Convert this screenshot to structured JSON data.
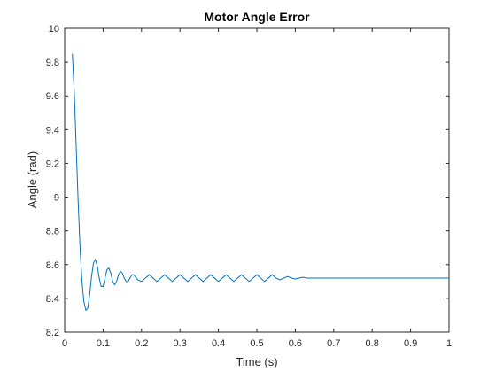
{
  "chart_data": {
    "type": "line",
    "title": "Motor Angle Error",
    "xlabel": "Time (s)",
    "ylabel": "Angle (rad)",
    "xlim": [
      0,
      1
    ],
    "ylim": [
      8.2,
      10
    ],
    "xticks": [
      0,
      0.1,
      0.2,
      0.3,
      0.4,
      0.5,
      0.6,
      0.7,
      0.8,
      0.9,
      1
    ],
    "xtick_labels": [
      "0",
      "0.1",
      "0.2",
      "0.3",
      "0.4",
      "0.5",
      "0.6",
      "0.7",
      "0.8",
      "0.9",
      "1"
    ],
    "yticks": [
      8.2,
      8.4,
      8.6,
      8.8,
      9,
      9.2,
      9.4,
      9.6,
      9.8,
      10
    ],
    "ytick_labels": [
      "8.2",
      "8.4",
      "8.6",
      "8.8",
      "9",
      "9.2",
      "9.4",
      "9.6",
      "9.8",
      "10"
    ],
    "grid": false,
    "line_color": "#0072bd",
    "series": [
      {
        "x": [
          0.02,
          0.025,
          0.03,
          0.035,
          0.04,
          0.045,
          0.05,
          0.055,
          0.06,
          0.065,
          0.07,
          0.075,
          0.08,
          0.085,
          0.09,
          0.095,
          0.1,
          0.105,
          0.11,
          0.115,
          0.12,
          0.125,
          0.13,
          0.135,
          0.14,
          0.145,
          0.15,
          0.155,
          0.16,
          0.165,
          0.17,
          0.175,
          0.18,
          0.19,
          0.2,
          0.21,
          0.22,
          0.23,
          0.24,
          0.25,
          0.26,
          0.27,
          0.28,
          0.29,
          0.3,
          0.31,
          0.32,
          0.33,
          0.34,
          0.35,
          0.36,
          0.37,
          0.38,
          0.39,
          0.4,
          0.41,
          0.42,
          0.43,
          0.44,
          0.45,
          0.46,
          0.47,
          0.48,
          0.49,
          0.5,
          0.51,
          0.52,
          0.53,
          0.54,
          0.55,
          0.56,
          0.57,
          0.58,
          0.59,
          0.6,
          0.61,
          0.62,
          0.63,
          0.64,
          0.65,
          0.7,
          0.8,
          0.9,
          1.0
        ],
        "y": [
          9.85,
          9.62,
          9.3,
          8.98,
          8.7,
          8.5,
          8.38,
          8.33,
          8.34,
          8.42,
          8.53,
          8.61,
          8.63,
          8.59,
          8.52,
          8.47,
          8.47,
          8.52,
          8.57,
          8.58,
          8.55,
          8.5,
          8.48,
          8.5,
          8.54,
          8.56,
          8.55,
          8.52,
          8.5,
          8.5,
          8.52,
          8.54,
          8.54,
          8.51,
          8.5,
          8.52,
          8.54,
          8.52,
          8.5,
          8.52,
          8.54,
          8.52,
          8.5,
          8.52,
          8.54,
          8.52,
          8.5,
          8.52,
          8.54,
          8.52,
          8.5,
          8.52,
          8.54,
          8.52,
          8.5,
          8.52,
          8.54,
          8.52,
          8.5,
          8.52,
          8.54,
          8.52,
          8.5,
          8.52,
          8.54,
          8.52,
          8.5,
          8.52,
          8.54,
          8.52,
          8.51,
          8.52,
          8.53,
          8.52,
          8.515,
          8.52,
          8.525,
          8.52,
          8.52,
          8.52,
          8.52,
          8.52,
          8.52,
          8.52
        ]
      }
    ]
  }
}
